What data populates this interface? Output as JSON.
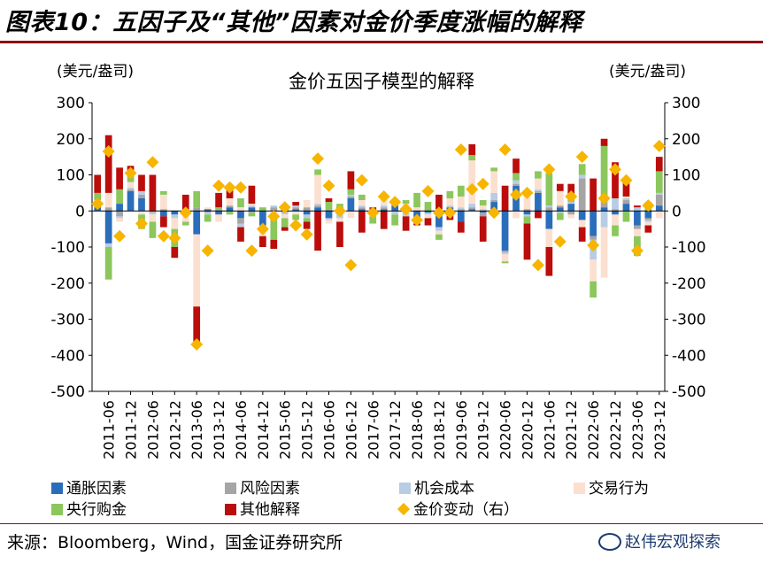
{
  "figure": {
    "title": "图表10：五因子及“其他”因素对金价季度涨幅的解释",
    "source": "来源：Bloomberg，Wind，国金证券研究所",
    "watermark": "赵伟宏观探索"
  },
  "chart_data": {
    "type": "bar",
    "stacked": true,
    "title": "金价五因子模型的解释",
    "ylabel_left": "(美元/盎司)",
    "ylabel_right": "(美元/盎司)",
    "ylim": [
      -500,
      300
    ],
    "yticks": [
      300,
      200,
      100,
      0,
      -100,
      -200,
      -300,
      -400,
      -500
    ],
    "xtick_labels": [
      "2011-06",
      "2011-12",
      "2012-06",
      "2012-12",
      "2013-06",
      "2013-12",
      "2014-06",
      "2014-12",
      "2015-06",
      "2015-12",
      "2016-06",
      "2016-12",
      "2017-06",
      "2017-12",
      "2018-06",
      "2018-12",
      "2019-06",
      "2019-12",
      "2020-06",
      "2020-12",
      "2021-06",
      "2021-12",
      "2022-06",
      "2022-12",
      "2023-06",
      "2023-12"
    ],
    "categories": [
      "2011-03",
      "2011-06",
      "2011-09",
      "2011-12",
      "2012-03",
      "2012-06",
      "2012-09",
      "2012-12",
      "2013-03",
      "2013-06",
      "2013-09",
      "2013-12",
      "2014-03",
      "2014-06",
      "2014-09",
      "2014-12",
      "2015-03",
      "2015-06",
      "2015-09",
      "2015-12",
      "2016-03",
      "2016-06",
      "2016-09",
      "2016-12",
      "2017-03",
      "2017-06",
      "2017-09",
      "2017-12",
      "2018-03",
      "2018-06",
      "2018-09",
      "2018-12",
      "2019-03",
      "2019-06",
      "2019-09",
      "2019-12",
      "2020-03",
      "2020-06",
      "2020-09",
      "2020-12",
      "2021-03",
      "2021-06",
      "2021-09",
      "2021-12",
      "2022-03",
      "2022-06",
      "2022-09",
      "2022-12",
      "2023-03",
      "2023-06",
      "2023-09",
      "2023-12"
    ],
    "series": [
      {
        "name": "通胀因素",
        "color": "#2a6ebb",
        "values": [
          10,
          -90,
          20,
          55,
          35,
          0,
          -15,
          -10,
          5,
          -65,
          5,
          -10,
          10,
          -20,
          10,
          -40,
          0,
          10,
          5,
          -10,
          10,
          -20,
          10,
          35,
          5,
          -10,
          5,
          15,
          10,
          -25,
          -5,
          -45,
          10,
          -30,
          5,
          -5,
          25,
          -110,
          70,
          -10,
          50,
          -50,
          10,
          20,
          -25,
          -70,
          10,
          -10,
          20,
          -40,
          -20,
          15
        ]
      },
      {
        "name": "风险因素",
        "color": "#a5a5a5",
        "values": [
          5,
          10,
          -15,
          5,
          10,
          -5,
          5,
          0,
          0,
          10,
          -5,
          5,
          5,
          -15,
          -5,
          0,
          10,
          -5,
          5,
          10,
          5,
          5,
          -10,
          5,
          5,
          0,
          5,
          5,
          -5,
          -5,
          0,
          5,
          -5,
          5,
          5,
          -10,
          5,
          -5,
          5,
          5,
          5,
          10,
          5,
          -10,
          90,
          -10,
          20,
          5,
          10,
          -10,
          -5,
          30
        ]
      },
      {
        "name": "机会成本",
        "color": "#b8cce4",
        "values": [
          5,
          -10,
          -5,
          5,
          10,
          -5,
          0,
          -10,
          0,
          0,
          -5,
          0,
          0,
          -10,
          5,
          -10,
          5,
          -5,
          5,
          -10,
          5,
          -5,
          -10,
          5,
          5,
          0,
          5,
          -10,
          -10,
          -5,
          -5,
          -10,
          5,
          5,
          10,
          5,
          20,
          -5,
          10,
          -5,
          5,
          5,
          -5,
          5,
          10,
          -55,
          -45,
          30,
          5,
          10,
          -5,
          5
        ]
      },
      {
        "name": "交易行为",
        "color": "#fbe0d0",
        "values": [
          10,
          40,
          -10,
          15,
          -10,
          -20,
          40,
          -30,
          -30,
          -200,
          5,
          -20,
          20,
          10,
          5,
          -20,
          -20,
          -10,
          -10,
          20,
          80,
          -10,
          -10,
          -20,
          15,
          -5,
          20,
          5,
          10,
          10,
          -10,
          -10,
          20,
          30,
          120,
          10,
          60,
          -20,
          -20,
          40,
          30,
          -50,
          40,
          -10,
          -20,
          -60,
          -140,
          -30,
          5,
          -20,
          -10,
          -20
        ]
      },
      {
        "name": "央行购金",
        "color": "#8bc75c",
        "values": [
          20,
          -90,
          40,
          25,
          -40,
          -45,
          10,
          -50,
          -10,
          45,
          -20,
          5,
          -10,
          25,
          -10,
          10,
          -60,
          -25,
          -15,
          -10,
          15,
          20,
          10,
          15,
          15,
          -20,
          10,
          -30,
          10,
          40,
          25,
          -15,
          20,
          30,
          15,
          15,
          10,
          -5,
          20,
          -20,
          20,
          90,
          -20,
          10,
          30,
          -45,
          150,
          -30,
          -30,
          -55,
          25,
          60
        ]
      },
      {
        "name": "其他解释",
        "color": "#bb0d0b",
        "values": [
          50,
          160,
          60,
          20,
          45,
          100,
          -30,
          -30,
          40,
          -105,
          0,
          40,
          30,
          -40,
          50,
          -30,
          -25,
          -10,
          10,
          -20,
          -110,
          10,
          -70,
          50,
          -60,
          10,
          -50,
          5,
          -40,
          -5,
          -20,
          40,
          -20,
          -30,
          30,
          -70,
          -10,
          70,
          40,
          -100,
          -20,
          -80,
          20,
          40,
          -40,
          90,
          20,
          100,
          40,
          5,
          -20,
          40
        ]
      },
      {
        "name": "金价变动（右）",
        "color": "#f7b500",
        "type": "scatter",
        "axis": "right",
        "values": [
          20,
          165,
          -70,
          105,
          -35,
          135,
          -70,
          -75,
          -5,
          -370,
          -110,
          70,
          65,
          65,
          -110,
          -50,
          -15,
          10,
          -40,
          -65,
          145,
          70,
          0,
          -150,
          85,
          -5,
          40,
          25,
          5,
          -25,
          55,
          -5,
          -5,
          170,
          60,
          75,
          -5,
          170,
          45,
          50,
          -150,
          115,
          -85,
          40,
          150,
          -95,
          35,
          115,
          85,
          -110,
          15,
          180
        ]
      }
    ],
    "legend": [
      "通胀因素",
      "风险因素",
      "机会成本",
      "交易行为",
      "央行购金",
      "其他解释",
      "金价变动（右）"
    ]
  }
}
